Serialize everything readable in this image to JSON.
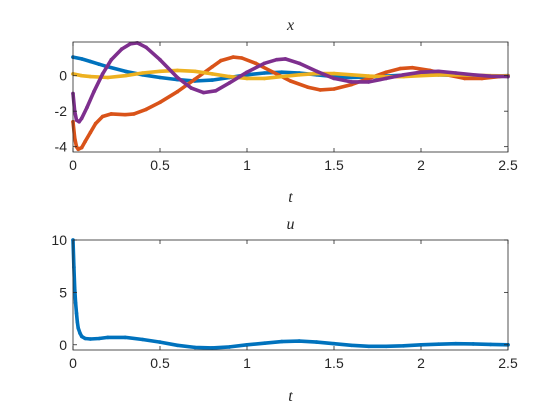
{
  "chart_data": [
    {
      "type": "line",
      "title": "x",
      "xlabel": "t",
      "ylabel": "",
      "xlim": [
        0,
        2.5
      ],
      "ylim": [
        -4.3,
        1.9
      ],
      "xticks": [
        0,
        0.5,
        1,
        1.5,
        2,
        2.5
      ],
      "xtick_labels": [
        "0",
        "0.5",
        "1",
        "1.5",
        "2",
        "2.5"
      ],
      "yticks": [
        -4,
        -2,
        0
      ],
      "ytick_labels": [
        "-4",
        "-2",
        "0"
      ],
      "grid": false,
      "series": [
        {
          "color": "#0072BD",
          "points": [
            [
              0,
              1.05
            ],
            [
              0.05,
              0.95
            ],
            [
              0.1,
              0.8
            ],
            [
              0.15,
              0.65
            ],
            [
              0.2,
              0.5
            ],
            [
              0.3,
              0.25
            ],
            [
              0.4,
              0.05
            ],
            [
              0.5,
              -0.1
            ],
            [
              0.6,
              -0.22
            ],
            [
              0.7,
              -0.3
            ],
            [
              0.8,
              -0.25
            ],
            [
              0.9,
              -0.1
            ],
            [
              1.0,
              0.05
            ],
            [
              1.1,
              0.15
            ],
            [
              1.2,
              0.2
            ],
            [
              1.3,
              0.15
            ],
            [
              1.4,
              0.05
            ],
            [
              1.5,
              -0.05
            ],
            [
              1.6,
              -0.1
            ],
            [
              1.7,
              -0.08
            ],
            [
              1.8,
              -0.02
            ],
            [
              1.9,
              0.03
            ],
            [
              2.0,
              0.06
            ],
            [
              2.1,
              0.05
            ],
            [
              2.2,
              0.02
            ],
            [
              2.3,
              -0.01
            ],
            [
              2.4,
              -0.02
            ],
            [
              2.5,
              0.0
            ]
          ]
        },
        {
          "color": "#D95319",
          "points": [
            [
              0,
              -2.6
            ],
            [
              0.01,
              -3.5
            ],
            [
              0.02,
              -4.0
            ],
            [
              0.03,
              -4.15
            ],
            [
              0.05,
              -4.05
            ],
            [
              0.07,
              -3.7
            ],
            [
              0.1,
              -3.2
            ],
            [
              0.13,
              -2.7
            ],
            [
              0.17,
              -2.3
            ],
            [
              0.22,
              -2.15
            ],
            [
              0.3,
              -2.2
            ],
            [
              0.35,
              -2.15
            ],
            [
              0.42,
              -1.9
            ],
            [
              0.5,
              -1.5
            ],
            [
              0.6,
              -0.9
            ],
            [
              0.7,
              -0.2
            ],
            [
              0.8,
              0.5
            ],
            [
              0.85,
              0.85
            ],
            [
              0.92,
              1.05
            ],
            [
              0.97,
              1.0
            ],
            [
              1.05,
              0.7
            ],
            [
              1.15,
              0.2
            ],
            [
              1.25,
              -0.3
            ],
            [
              1.35,
              -0.65
            ],
            [
              1.42,
              -0.8
            ],
            [
              1.5,
              -0.75
            ],
            [
              1.6,
              -0.5
            ],
            [
              1.7,
              -0.15
            ],
            [
              1.8,
              0.2
            ],
            [
              1.88,
              0.4
            ],
            [
              1.95,
              0.45
            ],
            [
              2.05,
              0.3
            ],
            [
              2.15,
              0.05
            ],
            [
              2.25,
              -0.15
            ],
            [
              2.35,
              -0.15
            ],
            [
              2.45,
              -0.05
            ],
            [
              2.5,
              0.0
            ]
          ]
        },
        {
          "color": "#EDB120",
          "points": [
            [
              0,
              0.1
            ],
            [
              0.05,
              0.0
            ],
            [
              0.1,
              -0.05
            ],
            [
              0.2,
              -0.1
            ],
            [
              0.3,
              0.0
            ],
            [
              0.4,
              0.15
            ],
            [
              0.5,
              0.25
            ],
            [
              0.6,
              0.3
            ],
            [
              0.7,
              0.25
            ],
            [
              0.8,
              0.1
            ],
            [
              0.9,
              -0.05
            ],
            [
              1.0,
              -0.15
            ],
            [
              1.1,
              -0.15
            ],
            [
              1.2,
              -0.05
            ],
            [
              1.3,
              0.05
            ],
            [
              1.4,
              0.12
            ],
            [
              1.5,
              0.12
            ],
            [
              1.6,
              0.05
            ],
            [
              1.7,
              -0.02
            ],
            [
              1.8,
              -0.06
            ],
            [
              1.9,
              -0.05
            ],
            [
              2.0,
              0.0
            ],
            [
              2.1,
              0.04
            ],
            [
              2.2,
              0.05
            ],
            [
              2.3,
              0.03
            ],
            [
              2.4,
              0.0
            ],
            [
              2.5,
              -0.01
            ]
          ]
        },
        {
          "color": "#7E2F8E",
          "points": [
            [
              0,
              -1.0
            ],
            [
              0.01,
              -2.0
            ],
            [
              0.02,
              -2.5
            ],
            [
              0.035,
              -2.6
            ],
            [
              0.05,
              -2.4
            ],
            [
              0.08,
              -1.8
            ],
            [
              0.12,
              -0.9
            ],
            [
              0.17,
              0.1
            ],
            [
              0.22,
              0.9
            ],
            [
              0.28,
              1.5
            ],
            [
              0.33,
              1.8
            ],
            [
              0.37,
              1.85
            ],
            [
              0.42,
              1.6
            ],
            [
              0.5,
              0.9
            ],
            [
              0.6,
              -0.1
            ],
            [
              0.68,
              -0.7
            ],
            [
              0.75,
              -0.95
            ],
            [
              0.82,
              -0.85
            ],
            [
              0.9,
              -0.4
            ],
            [
              1.0,
              0.2
            ],
            [
              1.1,
              0.7
            ],
            [
              1.17,
              0.9
            ],
            [
              1.22,
              0.95
            ],
            [
              1.3,
              0.7
            ],
            [
              1.4,
              0.25
            ],
            [
              1.5,
              -0.15
            ],
            [
              1.6,
              -0.35
            ],
            [
              1.7,
              -0.35
            ],
            [
              1.8,
              -0.15
            ],
            [
              1.9,
              0.05
            ],
            [
              2.0,
              0.2
            ],
            [
              2.1,
              0.25
            ],
            [
              2.2,
              0.15
            ],
            [
              2.3,
              0.05
            ],
            [
              2.4,
              -0.03
            ],
            [
              2.5,
              -0.05
            ]
          ]
        }
      ]
    },
    {
      "type": "line",
      "title": "u",
      "xlabel": "t",
      "ylabel": "",
      "xlim": [
        0,
        2.5
      ],
      "ylim": [
        -0.5,
        10
      ],
      "xticks": [
        0,
        0.5,
        1,
        1.5,
        2,
        2.5
      ],
      "xtick_labels": [
        "0",
        "0.5",
        "1",
        "1.5",
        "2",
        "2.5"
      ],
      "yticks": [
        0,
        5,
        10
      ],
      "ytick_labels": [
        "0",
        "5",
        "10"
      ],
      "grid": false,
      "series": [
        {
          "color": "#0072BD",
          "points": [
            [
              0,
              10.0
            ],
            [
              0.005,
              7.4
            ],
            [
              0.01,
              5.4
            ],
            [
              0.015,
              4.0
            ],
            [
              0.02,
              3.0
            ],
            [
              0.025,
              2.2
            ],
            [
              0.03,
              1.6
            ],
            [
              0.04,
              1.1
            ],
            [
              0.05,
              0.8
            ],
            [
              0.07,
              0.6
            ],
            [
              0.1,
              0.55
            ],
            [
              0.15,
              0.6
            ],
            [
              0.2,
              0.7
            ],
            [
              0.3,
              0.7
            ],
            [
              0.4,
              0.5
            ],
            [
              0.5,
              0.25
            ],
            [
              0.6,
              -0.05
            ],
            [
              0.7,
              -0.25
            ],
            [
              0.8,
              -0.3
            ],
            [
              0.9,
              -0.2
            ],
            [
              1.0,
              0.0
            ],
            [
              1.1,
              0.15
            ],
            [
              1.2,
              0.3
            ],
            [
              1.3,
              0.35
            ],
            [
              1.4,
              0.25
            ],
            [
              1.5,
              0.1
            ],
            [
              1.6,
              -0.05
            ],
            [
              1.7,
              -0.15
            ],
            [
              1.8,
              -0.15
            ],
            [
              1.9,
              -0.1
            ],
            [
              2.0,
              0.0
            ],
            [
              2.1,
              0.05
            ],
            [
              2.2,
              0.1
            ],
            [
              2.3,
              0.08
            ],
            [
              2.4,
              0.03
            ],
            [
              2.5,
              0.0
            ]
          ]
        }
      ]
    }
  ]
}
